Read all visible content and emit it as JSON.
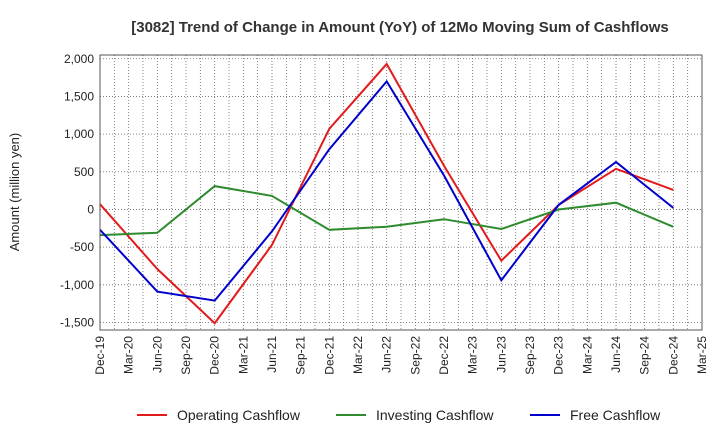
{
  "chart_data": {
    "type": "line",
    "title": "[3082]  Trend of Change in Amount (YoY) of 12Mo Moving Sum of Cashflows",
    "xlabel": "",
    "ylabel": "Amount (million yen)",
    "ylim": [
      -1600,
      2050
    ],
    "yticks": [
      2000,
      1500,
      1000,
      500,
      0,
      -500,
      -1000,
      -1500
    ],
    "ytick_labels": [
      "2,000",
      "1,500",
      "1,000",
      "500",
      "0",
      "-500",
      "-1,000",
      "-1,500"
    ],
    "categories": [
      "Dec-19",
      "Mar-20",
      "Jun-20",
      "Sep-20",
      "Dec-20",
      "Mar-21",
      "Jun-21",
      "Sep-21",
      "Dec-21",
      "Mar-22",
      "Jun-22",
      "Sep-22",
      "Dec-22",
      "Mar-23",
      "Jun-23",
      "Sep-23",
      "Dec-23",
      "Mar-24",
      "Jun-24",
      "Sep-24",
      "Dec-24",
      "Mar-25"
    ],
    "grid": true,
    "series": [
      {
        "name": "Operating Cashflow",
        "color": "#e31a1c",
        "points": [
          [
            0,
            70
          ],
          [
            2,
            -790
          ],
          [
            4,
            -1510
          ],
          [
            6,
            -470
          ],
          [
            8,
            1070
          ],
          [
            10,
            1930
          ],
          [
            12,
            580
          ],
          [
            14,
            -680
          ],
          [
            16,
            60
          ],
          [
            18,
            540
          ],
          [
            20,
            260
          ]
        ]
      },
      {
        "name": "Investing Cashflow",
        "color": "#2e8b2e",
        "points": [
          [
            0,
            -340
          ],
          [
            2,
            -310
          ],
          [
            4,
            310
          ],
          [
            6,
            180
          ],
          [
            8,
            -270
          ],
          [
            10,
            -230
          ],
          [
            12,
            -130
          ],
          [
            14,
            -260
          ],
          [
            16,
            0
          ],
          [
            18,
            90
          ],
          [
            20,
            -230
          ]
        ]
      },
      {
        "name": "Free Cashflow",
        "color": "#0000cc",
        "points": [
          [
            0,
            -270
          ],
          [
            2,
            -1090
          ],
          [
            4,
            -1210
          ],
          [
            6,
            -290
          ],
          [
            8,
            800
          ],
          [
            10,
            1700
          ],
          [
            12,
            450
          ],
          [
            14,
            -940
          ],
          [
            16,
            60
          ],
          [
            18,
            630
          ],
          [
            20,
            20
          ]
        ]
      }
    ]
  }
}
